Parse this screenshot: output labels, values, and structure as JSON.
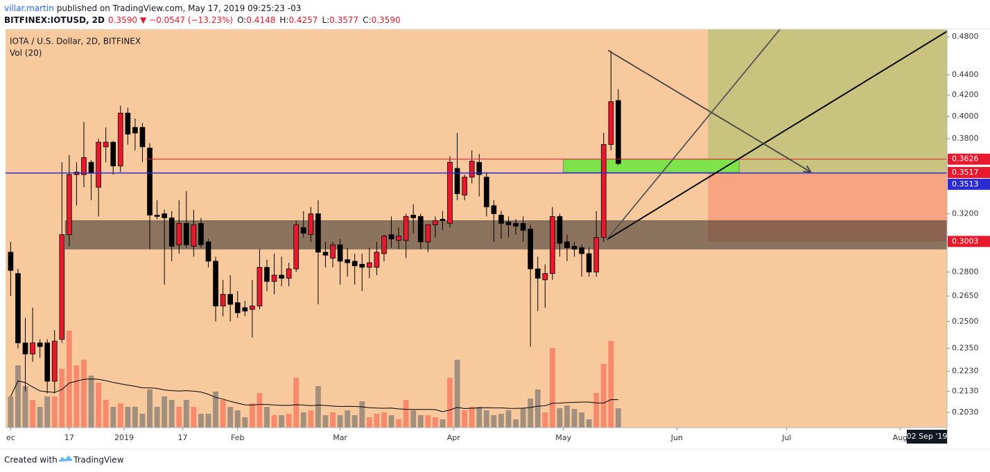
{
  "header": {
    "author": "villar.martin",
    "published": "published on TradingView.com, May 17, 2019 09:25:23 -03",
    "symbol": "BITFINEX:IOTUSD, 2D",
    "last": "0.3590",
    "change": "▼ −0.0547 (−13.23%)",
    "ohlc": [
      {
        "k": "O:",
        "v": "0.4148"
      },
      {
        "k": "H:",
        "v": "0.4257"
      },
      {
        "k": "L:",
        "v": "0.3577"
      },
      {
        "k": "C:",
        "v": "0.3590"
      }
    ]
  },
  "footer": {
    "text": "Created with",
    "brand": "TradingView"
  },
  "chart_data": {
    "type": "candlestick",
    "title": "IOTA / U.S. Dollar, 2D, BITFINEX",
    "volume_label": "Vol (20)",
    "log_scale": true,
    "up_color": "#e8192c",
    "down_color": "#000000",
    "vol_up_color": "#f78a6c",
    "vol_down_color": "#a38f7d",
    "volume_ma_color": "#000000",
    "volume_ma_period": 20,
    "xlim": [
      -32.4,
      224.8
    ],
    "ylim": [
      0.196,
      0.4885
    ],
    "volume_ylim": [
      0,
      575
    ],
    "yticks": [
      {
        "value": 0.48,
        "label": "0.4800"
      },
      {
        "value": 0.44,
        "label": "0.4400"
      },
      {
        "value": 0.42,
        "label": "0.4200"
      },
      {
        "value": 0.4,
        "label": "0.4000"
      },
      {
        "value": 0.38,
        "label": "0.3800"
      },
      {
        "value": 0.32,
        "label": "0.3200"
      },
      {
        "value": 0.28,
        "label": "0.2800"
      },
      {
        "value": 0.265,
        "label": "0.2650"
      },
      {
        "value": 0.25,
        "label": "0.2500"
      },
      {
        "value": 0.235,
        "label": "0.2350"
      },
      {
        "value": 0.223,
        "label": "0.2230"
      },
      {
        "value": 0.213,
        "label": "0.2130"
      },
      {
        "value": 0.203,
        "label": "0.2030"
      }
    ],
    "xticks": [
      {
        "value": -31,
        "label": "ec"
      },
      {
        "value": -15,
        "label": "17"
      },
      {
        "value": 0,
        "label": "2019"
      },
      {
        "value": 16,
        "label": "17"
      },
      {
        "value": 31,
        "label": "Feb"
      },
      {
        "value": 59,
        "label": "Mar"
      },
      {
        "value": 90,
        "label": "Apr"
      },
      {
        "value": 120,
        "label": "May"
      },
      {
        "value": 151,
        "label": "Jun"
      },
      {
        "value": 181,
        "label": "Jul"
      },
      {
        "value": 212,
        "label": "Aug"
      }
    ],
    "cursor_date_label": "02 Sep '19",
    "price_labels": [
      {
        "value": 0.3626,
        "label": "0.3626",
        "color": "#e8192c"
      },
      {
        "value": 0.3517,
        "label": "0.3517",
        "color": "#e8192c"
      },
      {
        "value": 0.3513,
        "label": "0.3513",
        "color": "#2b2bd4"
      },
      {
        "value": 0.3003,
        "label": "0.3003",
        "color": "#e8192c"
      }
    ],
    "x": [
      -31,
      -29,
      -27,
      -25,
      -23,
      -21,
      -19,
      -17,
      -15,
      -13,
      -11,
      -9,
      -7,
      -5,
      -3,
      -1,
      1,
      3,
      5,
      7,
      9,
      11,
      13,
      15,
      17,
      19,
      21,
      23,
      25,
      27,
      29,
      31,
      33,
      35,
      37,
      39,
      41,
      43,
      45,
      47,
      49,
      51,
      53,
      55,
      57,
      59,
      61,
      63,
      65,
      67,
      69,
      71,
      73,
      75,
      77,
      79,
      81,
      83,
      85,
      87,
      89,
      91,
      93,
      95,
      97,
      99,
      101,
      103,
      105,
      107,
      109,
      111,
      113,
      115,
      117,
      119,
      121,
      123,
      125,
      127,
      129,
      131,
      133,
      135
    ],
    "open": [
      0.293,
      0.279,
      0.238,
      0.232,
      0.238,
      0.238,
      0.218,
      0.24,
      0.305,
      0.35,
      0.35,
      0.36,
      0.34,
      0.373,
      0.377,
      0.357,
      0.403,
      0.39,
      0.39,
      0.372,
      0.319,
      0.32,
      0.317,
      0.298,
      0.313,
      0.297,
      0.313,
      0.3,
      0.287,
      0.259,
      0.266,
      0.261,
      0.258,
      0.257,
      0.259,
      0.283,
      0.274,
      0.278,
      0.276,
      0.282,
      0.31,
      0.305,
      0.32,
      0.293,
      0.289,
      0.298,
      0.288,
      0.287,
      0.285,
      0.283,
      0.283,
      0.292,
      0.305,
      0.301,
      0.301,
      0.319,
      0.318,
      0.3,
      0.312,
      0.316,
      0.313,
      0.355,
      0.334,
      0.348,
      0.36,
      0.348,
      0.326,
      0.319,
      0.314,
      0.313,
      0.313,
      0.309,
      0.282,
      0.275,
      0.279,
      0.318,
      0.3,
      0.297,
      0.296,
      0.292,
      0.28,
      0.303,
      0.375,
      0.4148
    ],
    "high": [
      0.3,
      0.282,
      0.252,
      0.258,
      0.24,
      0.24,
      0.245,
      0.36,
      0.366,
      0.36,
      0.395,
      0.362,
      0.38,
      0.39,
      0.378,
      0.41,
      0.408,
      0.398,
      0.394,
      0.376,
      0.33,
      0.323,
      0.322,
      0.33,
      0.337,
      0.323,
      0.317,
      0.302,
      0.29,
      0.275,
      0.278,
      0.268,
      0.262,
      0.275,
      0.295,
      0.288,
      0.292,
      0.29,
      0.286,
      0.315,
      0.322,
      0.325,
      0.33,
      0.3,
      0.3,
      0.302,
      0.296,
      0.292,
      0.292,
      0.296,
      0.3,
      0.305,
      0.318,
      0.31,
      0.32,
      0.327,
      0.32,
      0.312,
      0.318,
      0.322,
      0.365,
      0.385,
      0.35,
      0.37,
      0.367,
      0.352,
      0.33,
      0.322,
      0.318,
      0.316,
      0.318,
      0.312,
      0.29,
      0.285,
      0.325,
      0.32,
      0.305,
      0.3,
      0.298,
      0.296,
      0.322,
      0.385,
      0.465,
      0.4257
    ],
    "low": [
      0.265,
      0.235,
      0.213,
      0.228,
      0.23,
      0.212,
      0.212,
      0.238,
      0.297,
      0.326,
      0.34,
      0.33,
      0.318,
      0.36,
      0.35,
      0.352,
      0.375,
      0.37,
      0.36,
      0.295,
      0.316,
      0.272,
      0.287,
      0.292,
      0.296,
      0.29,
      0.296,
      0.283,
      0.25,
      0.253,
      0.25,
      0.252,
      0.253,
      0.241,
      0.257,
      0.268,
      0.266,
      0.271,
      0.271,
      0.28,
      0.303,
      0.3,
      0.26,
      0.283,
      0.283,
      0.272,
      0.277,
      0.272,
      0.268,
      0.276,
      0.278,
      0.287,
      0.296,
      0.295,
      0.289,
      0.306,
      0.295,
      0.293,
      0.303,
      0.308,
      0.31,
      0.33,
      0.33,
      0.343,
      0.333,
      0.318,
      0.3,
      0.302,
      0.303,
      0.305,
      0.3,
      0.236,
      0.256,
      0.258,
      0.275,
      0.29,
      0.287,
      0.29,
      0.277,
      0.277,
      0.277,
      0.3,
      0.37,
      0.3577
    ],
    "close": [
      0.281,
      0.238,
      0.232,
      0.238,
      0.236,
      0.218,
      0.239,
      0.305,
      0.35,
      0.352,
      0.364,
      0.351,
      0.377,
      0.377,
      0.357,
      0.403,
      0.384,
      0.385,
      0.373,
      0.319,
      0.318,
      0.317,
      0.297,
      0.313,
      0.298,
      0.312,
      0.298,
      0.287,
      0.259,
      0.266,
      0.26,
      0.255,
      0.256,
      0.259,
      0.283,
      0.274,
      0.278,
      0.276,
      0.282,
      0.312,
      0.306,
      0.32,
      0.293,
      0.291,
      0.298,
      0.287,
      0.286,
      0.284,
      0.283,
      0.286,
      0.293,
      0.304,
      0.302,
      0.304,
      0.318,
      0.317,
      0.3,
      0.312,
      0.315,
      0.315,
      0.36,
      0.335,
      0.348,
      0.361,
      0.35,
      0.325,
      0.32,
      0.313,
      0.312,
      0.311,
      0.308,
      0.282,
      0.276,
      0.279,
      0.318,
      0.299,
      0.296,
      0.295,
      0.292,
      0.28,
      0.303,
      0.375,
      0.4137,
      0.359
    ],
    "volume": [
      45,
      90,
      60,
      40,
      30,
      45,
      45,
      85,
      140,
      90,
      98,
      75,
      65,
      40,
      30,
      35,
      30,
      30,
      20,
      55,
      30,
      45,
      40,
      30,
      40,
      30,
      20,
      20,
      52,
      40,
      30,
      25,
      15,
      35,
      50,
      30,
      18,
      18,
      20,
      72,
      22,
      25,
      60,
      18,
      22,
      18,
      25,
      18,
      38,
      15,
      20,
      22,
      18,
      12,
      40,
      25,
      18,
      18,
      15,
      12,
      72,
      98,
      25,
      30,
      30,
      25,
      18,
      20,
      25,
      12,
      28,
      42,
      55,
      22,
      115,
      28,
      32,
      27,
      22,
      12,
      50,
      92,
      125,
      28
    ],
    "drawings": [
      {
        "type": "position",
        "start": 159.5,
        "end": 224.8,
        "entry": 0.3517,
        "target": 0.4885,
        "stop": 0.3003,
        "profit_color": "#c9c380",
        "loss_color": "#f8a480"
      },
      {
        "type": "rect",
        "start": -16.1,
        "end": 224.8,
        "top": 0.315,
        "bottom": 0.2951,
        "color": "rgba(30,30,30,0.5)"
      },
      {
        "type": "rect",
        "start": 120,
        "end": 168,
        "top": 0.3626,
        "bottom": 0.3517,
        "color": "#7ee24a"
      },
      {
        "type": "hline",
        "start": 6,
        "price": 0.3626,
        "color": "#e8192c"
      },
      {
        "type": "hline",
        "start": -32.4,
        "price": 0.3513,
        "color": "#2b2bd4"
      },
      {
        "type": "line",
        "start": [
          131.8,
          0.3015
        ],
        "end": [
          224.8,
          0.486
        ],
        "color": "#000000"
      },
      {
        "type": "line",
        "start": [
          131.8,
          0.3015
        ],
        "end": [
          179.2,
          0.4885
        ],
        "color": "#555555"
      },
      {
        "type": "arrow",
        "start": [
          132.2,
          0.4653
        ],
        "end": [
          187.6,
          0.352
        ],
        "color": "#444444"
      }
    ]
  }
}
